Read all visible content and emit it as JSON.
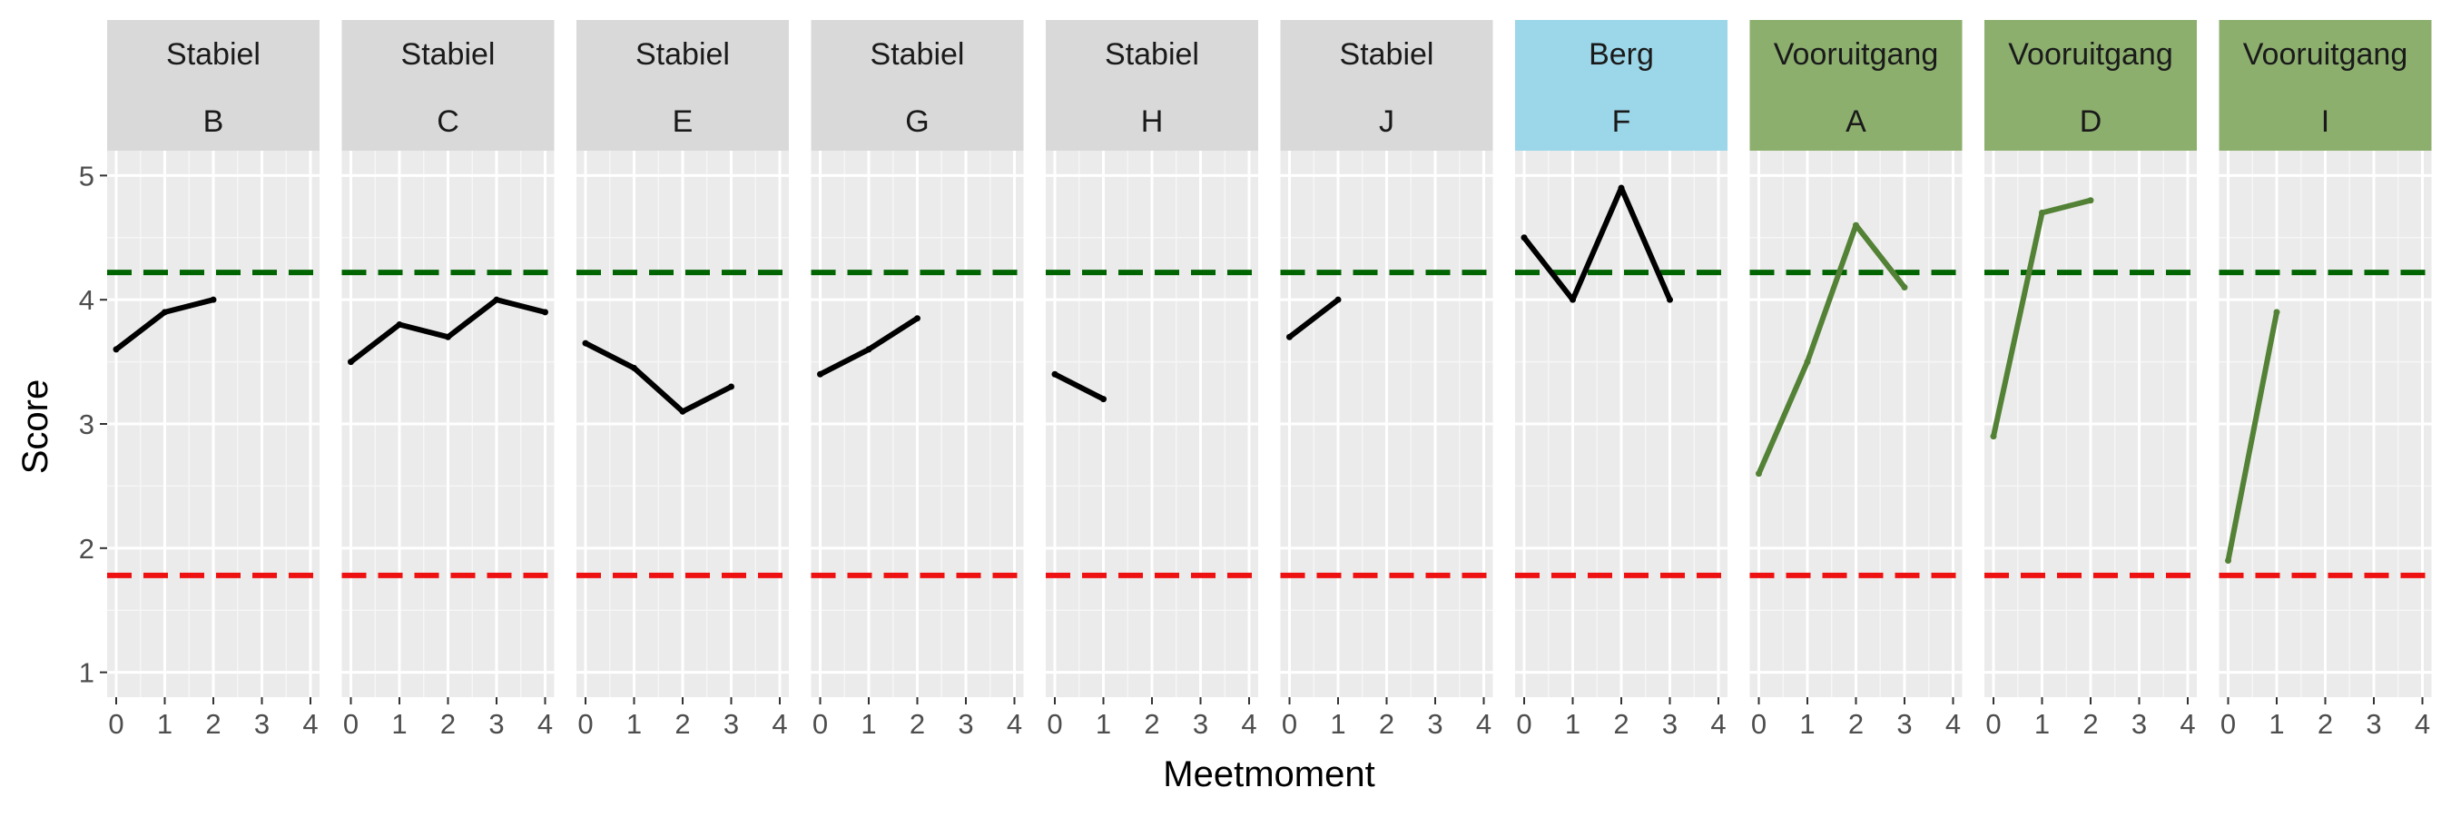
{
  "chart_data": {
    "type": "line",
    "layout": "faceted",
    "xlabel": "Meetmoment",
    "ylabel": "Score",
    "xlim": [
      0,
      4
    ],
    "ylim": [
      1,
      5
    ],
    "x_ticks": [
      0,
      1,
      2,
      3,
      4
    ],
    "y_ticks": [
      1,
      2,
      3,
      4,
      5
    ],
    "grid": true,
    "reference_lines": [
      {
        "name": "upper",
        "y": 4.22,
        "color": "#006400",
        "style": "dashed"
      },
      {
        "name": "lower",
        "y": 1.78,
        "color": "#ee1111",
        "style": "dashed"
      }
    ],
    "group_colors": {
      "Stabiel": {
        "strip": "#d9d9d9",
        "line": "#000000"
      },
      "Berg": {
        "strip": "#9bd7e9",
        "line": "#000000"
      },
      "Vooruitgang": {
        "strip": "#8caf6e",
        "line": "#538135"
      }
    },
    "panels": [
      {
        "group": "Stabiel",
        "id": "B",
        "x": [
          0,
          1,
          2
        ],
        "y": [
          3.6,
          3.9,
          4.0
        ]
      },
      {
        "group": "Stabiel",
        "id": "C",
        "x": [
          0,
          1,
          2,
          3,
          4
        ],
        "y": [
          3.5,
          3.8,
          3.7,
          4.0,
          3.9
        ]
      },
      {
        "group": "Stabiel",
        "id": "E",
        "x": [
          0,
          1,
          2,
          3
        ],
        "y": [
          3.65,
          3.45,
          3.1,
          3.3
        ]
      },
      {
        "group": "Stabiel",
        "id": "G",
        "x": [
          0,
          1,
          2
        ],
        "y": [
          3.4,
          3.6,
          3.85
        ]
      },
      {
        "group": "Stabiel",
        "id": "H",
        "x": [
          0,
          1
        ],
        "y": [
          3.4,
          3.2
        ]
      },
      {
        "group": "Stabiel",
        "id": "J",
        "x": [
          0,
          1
        ],
        "y": [
          3.7,
          4.0
        ]
      },
      {
        "group": "Berg",
        "id": "F",
        "x": [
          0,
          1,
          2,
          3
        ],
        "y": [
          4.5,
          4.0,
          4.9,
          4.0
        ]
      },
      {
        "group": "Vooruitgang",
        "id": "A",
        "x": [
          0,
          1,
          2,
          3
        ],
        "y": [
          2.6,
          3.5,
          4.6,
          4.1
        ]
      },
      {
        "group": "Vooruitgang",
        "id": "D",
        "x": [
          0,
          1,
          2
        ],
        "y": [
          2.9,
          4.7,
          4.8
        ]
      },
      {
        "group": "Vooruitgang",
        "id": "I",
        "x": [
          0,
          1
        ],
        "y": [
          1.9,
          3.9
        ]
      }
    ]
  }
}
